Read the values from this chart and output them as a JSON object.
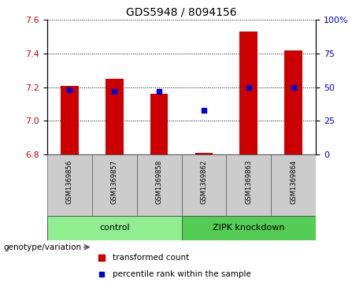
{
  "title": "GDS5948 / 8094156",
  "samples": [
    "GSM1369856",
    "GSM1369857",
    "GSM1369858",
    "GSM1369862",
    "GSM1369863",
    "GSM1369864"
  ],
  "red_values": [
    7.21,
    7.25,
    7.16,
    6.81,
    7.53,
    7.42
  ],
  "blue_values": [
    48,
    47,
    47,
    33,
    50,
    50
  ],
  "ylim_left": [
    6.8,
    7.6
  ],
  "ylim_right": [
    0,
    100
  ],
  "yticks_left": [
    6.8,
    7.0,
    7.2,
    7.4,
    7.6
  ],
  "yticks_right": [
    0,
    25,
    50,
    75,
    100
  ],
  "ytick_labels_right": [
    "0",
    "25",
    "50",
    "75",
    "100%"
  ],
  "control_label": "control",
  "knockdown_label": "ZIPK knockdown",
  "genotype_label": "genotype/variation",
  "legend_red": "transformed count",
  "legend_blue": "percentile rank within the sample",
  "bar_color": "#cc0000",
  "dot_color": "#0000cc",
  "control_bg": "#90ee90",
  "knockdown_bg": "#55cc55",
  "sample_bg": "#cccccc",
  "bar_width": 0.4
}
